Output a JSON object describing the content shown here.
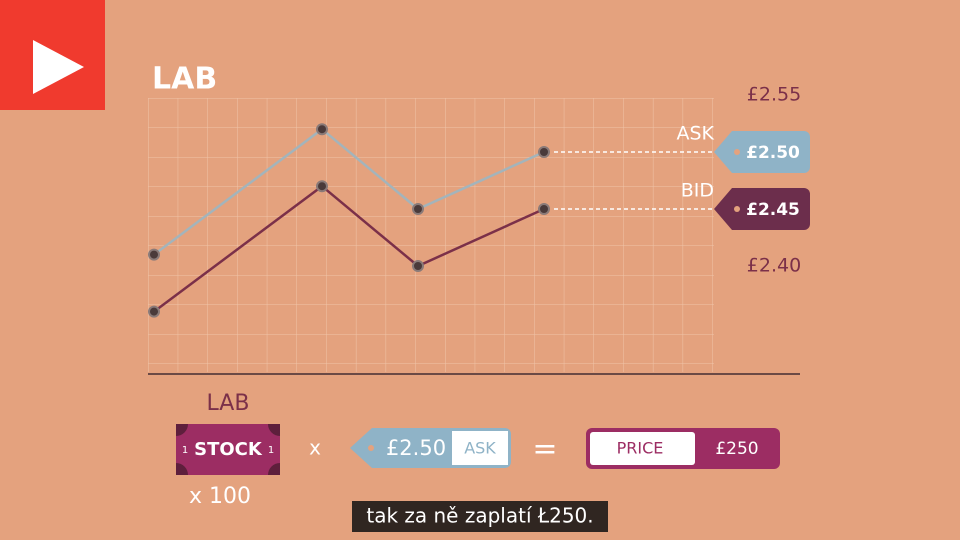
{
  "chart_data": {
    "type": "line",
    "title": "LAB",
    "categories": [
      null,
      null,
      null,
      null
    ],
    "series": [
      {
        "name": "ASK",
        "color": "#a3b4bb",
        "values": [
          2.41,
          2.52,
          2.45,
          2.5
        ],
        "tag": {
          "value": 2.5,
          "label": "£2.50"
        },
        "tag_color": "#8fb3c7"
      },
      {
        "name": "BID",
        "color": "#7b3049",
        "values": [
          2.36,
          2.47,
          2.4,
          2.45
        ],
        "tag": {
          "value": 2.45,
          "label": "£2.45"
        },
        "tag_color": "#6c2e4c"
      }
    ],
    "ylim": [
      2.3,
      2.55
    ],
    "yticks": [
      {
        "value": 2.55,
        "label": "£2.55"
      },
      {
        "value": 2.4,
        "label": "£2.40"
      }
    ],
    "grid": true
  },
  "formula": {
    "stock_name": "LAB",
    "stock": "STOCK",
    "stock_corner": "1",
    "quantity": "x 100",
    "times": "x",
    "ask_price": "£2.50",
    "ask_label": "ASK",
    "equals": "=",
    "price_label": "PRICE",
    "price": "£250"
  },
  "caption": "tak za ně zaplatí Ł250."
}
